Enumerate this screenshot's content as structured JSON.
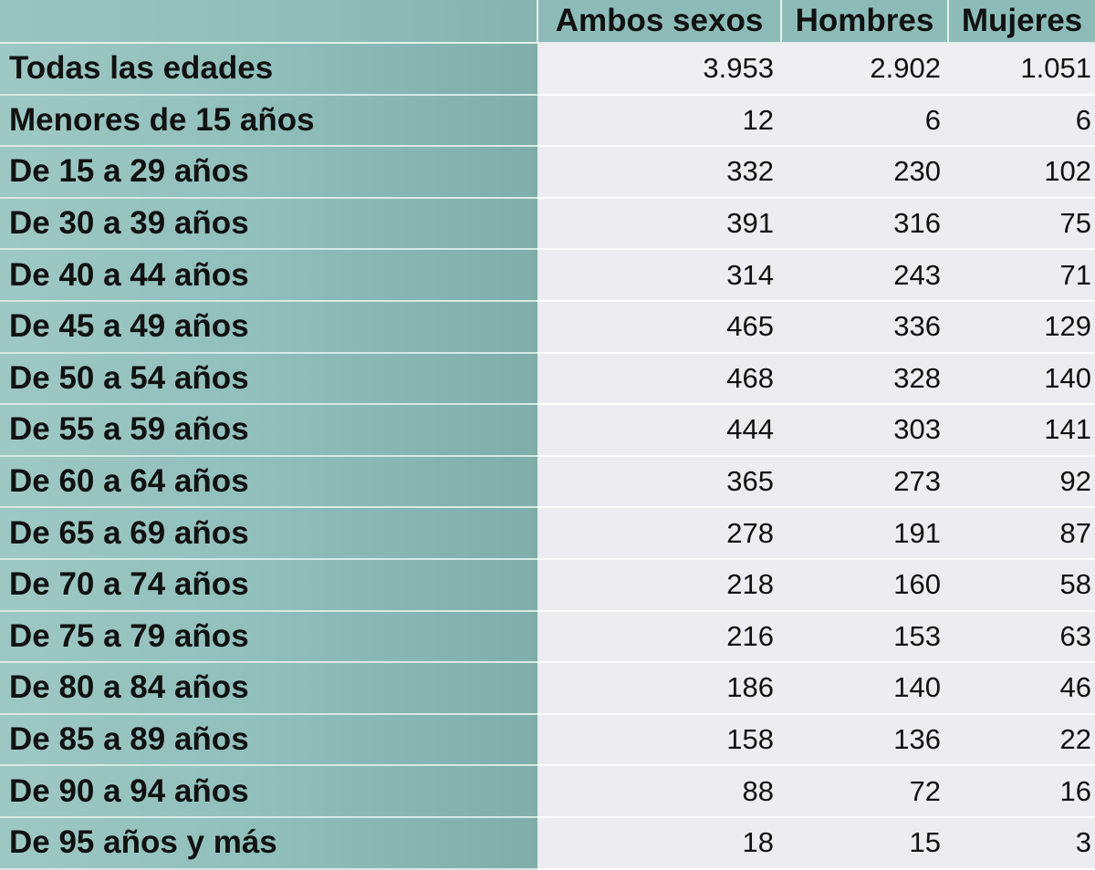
{
  "chart_data": {
    "type": "table",
    "columns": [
      "Ambos sexos",
      "Hombres",
      "Mujeres"
    ],
    "rows": [
      {
        "label": "Todas las edades",
        "values": [
          "3.953",
          "2.902",
          "1.051"
        ]
      },
      {
        "label": "Menores de 15 años",
        "values": [
          "12",
          "6",
          "6"
        ]
      },
      {
        "label": "De 15 a 29 años",
        "values": [
          "332",
          "230",
          "102"
        ]
      },
      {
        "label": "De 30 a 39 años",
        "values": [
          "391",
          "316",
          "75"
        ]
      },
      {
        "label": "De 40 a 44 años",
        "values": [
          "314",
          "243",
          "71"
        ]
      },
      {
        "label": "De 45 a 49 años",
        "values": [
          "465",
          "336",
          "129"
        ]
      },
      {
        "label": "De 50 a 54 años",
        "values": [
          "468",
          "328",
          "140"
        ]
      },
      {
        "label": "De 55 a 59 años",
        "values": [
          "444",
          "303",
          "141"
        ]
      },
      {
        "label": "De 60 a 64 años",
        "values": [
          "365",
          "273",
          "92"
        ]
      },
      {
        "label": "De 65 a 69 años",
        "values": [
          "278",
          "191",
          "87"
        ]
      },
      {
        "label": "De 70 a 74 años",
        "values": [
          "218",
          "160",
          "58"
        ]
      },
      {
        "label": "De 75 a 79 años",
        "values": [
          "216",
          "153",
          "63"
        ]
      },
      {
        "label": "De 80 a 84 años",
        "values": [
          "186",
          "140",
          "46"
        ]
      },
      {
        "label": "De 85 a 89 años",
        "values": [
          "158",
          "136",
          "22"
        ]
      },
      {
        "label": "De 90 a 94 años",
        "values": [
          "88",
          "72",
          "16"
        ]
      },
      {
        "label": "De 95 años y más",
        "values": [
          "18",
          "15",
          "3"
        ]
      }
    ]
  },
  "colors": {
    "label_column_bg": "#8dbcb8",
    "value_cell_bg": "#ececf1",
    "text": "#111111"
  }
}
